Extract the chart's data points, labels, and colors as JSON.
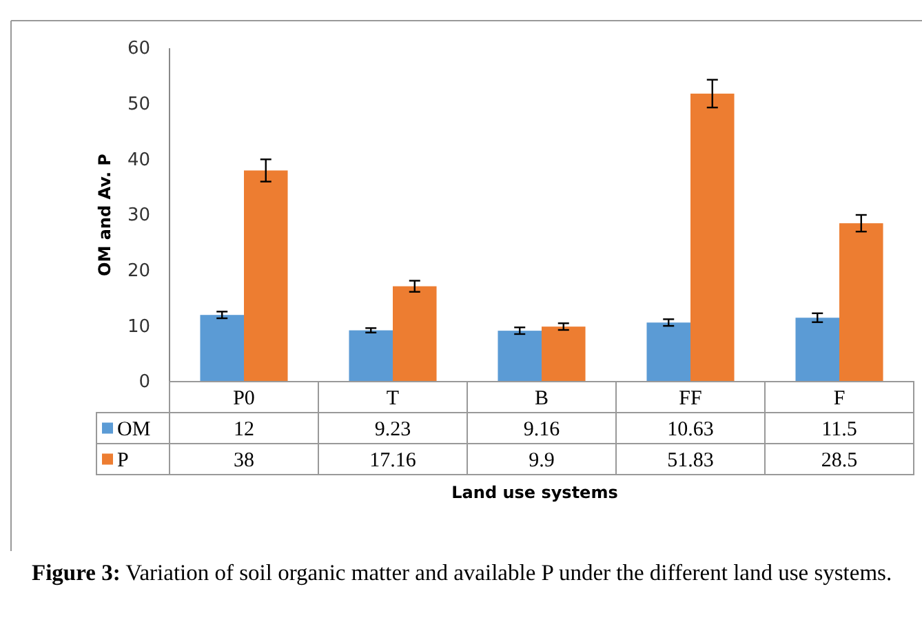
{
  "chart_data": {
    "type": "bar",
    "categories": [
      "P0",
      "T",
      "B",
      "FF",
      "F"
    ],
    "series": [
      {
        "name": "OM",
        "color": "#5b9bd5",
        "values": [
          12,
          9.23,
          9.16,
          10.63,
          11.5
        ],
        "errors": [
          0.6,
          0.4,
          0.6,
          0.6,
          0.8
        ]
      },
      {
        "name": "P",
        "color": "#ed7d31",
        "values": [
          38,
          17.16,
          9.9,
          51.83,
          28.5
        ],
        "errors": [
          2,
          1,
          0.6,
          2.5,
          1.5
        ]
      }
    ],
    "ylim": [
      0,
      60
    ],
    "yticks": [
      0,
      10,
      20,
      30,
      40,
      50,
      60
    ],
    "ylabel": "OM and Av. P",
    "xlabel": "Land use systems",
    "data_labels": true,
    "legend": "bottom left",
    "grid": false,
    "annotations": [
      "Figure 3: Variation of soil organic matter and available P under the different land use systems."
    ]
  }
}
